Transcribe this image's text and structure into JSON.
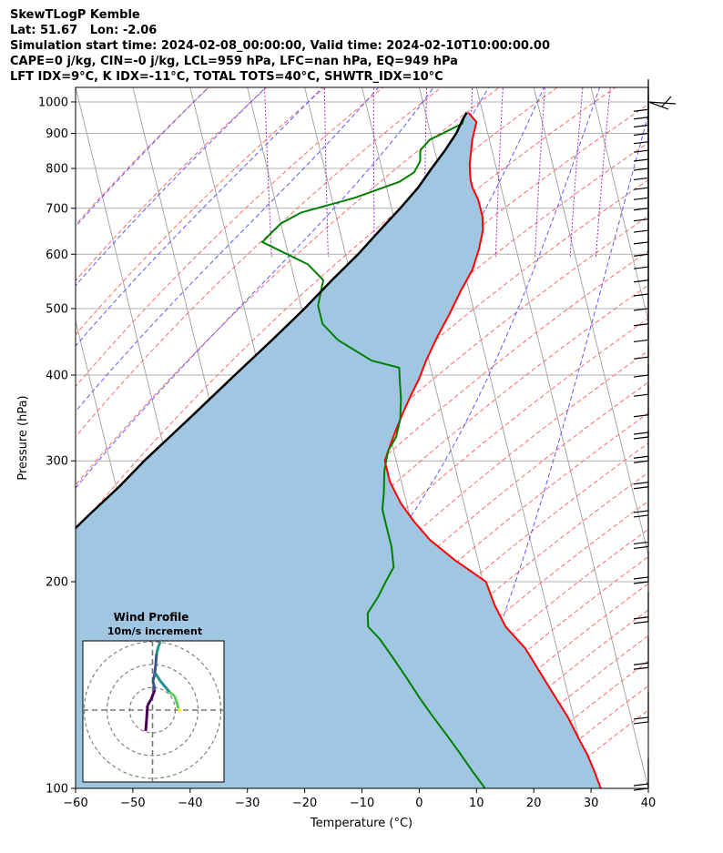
{
  "chart_data": {
    "type": "skew-t log-p",
    "title": {
      "line1": "SkewTLogP Kemble",
      "line2": "Lat: 51.67   Lon: -2.06",
      "line3": "Simulation start time: 2024-02-08_00:00:00, Valid time: 2024-02-10T10:00:00.00",
      "line4": "CAPE=0 j/kg, CIN=-0 j/kg, LCL=959 hPa, LFC=nan hPa, EQ=949 hPa",
      "line5": "LFT IDX=9°C, K IDX=-11°C, TOTAL TOTS=40°C, SHWTR_IDX=10°C"
    },
    "xlabel": "Temperature (°C)",
    "ylabel": "Pressure (hPa)",
    "xlim": [
      -60,
      40
    ],
    "ylim": [
      1050,
      100
    ],
    "y_scale": "log",
    "x_ticks": [
      "−60",
      "−50",
      "−40",
      "−30",
      "−20",
      "−10",
      "0",
      "10",
      "20",
      "30",
      "40"
    ],
    "y_ticks": [
      "100",
      "200",
      "300",
      "400",
      "500",
      "600",
      "700",
      "800",
      "900",
      "1000"
    ],
    "grid": true,
    "series": [
      {
        "color": "#ff0000",
        "points": [
          [
            7.5,
            965
          ],
          [
            8.5,
            935
          ],
          [
            7,
            880
          ],
          [
            5.5,
            810
          ],
          [
            5,
            770
          ],
          [
            5,
            750
          ],
          [
            5.5,
            720
          ],
          [
            5.5,
            680
          ],
          [
            5,
            650
          ],
          [
            3.5,
            610
          ],
          [
            1.5,
            570
          ],
          [
            -1.5,
            530
          ],
          [
            -4.5,
            490
          ],
          [
            -7.5,
            455
          ],
          [
            -10.5,
            420
          ],
          [
            -12.5,
            395
          ],
          [
            -14.5,
            375
          ],
          [
            -16.5,
            355
          ],
          [
            -18.5,
            335
          ],
          [
            -20.5,
            315
          ],
          [
            -22,
            300
          ],
          [
            -22,
            280
          ],
          [
            -21,
            260
          ],
          [
            -19.5,
            245
          ],
          [
            -17.5,
            230
          ],
          [
            -14,
            215
          ],
          [
            -9.5,
            200
          ],
          [
            -9,
            185
          ],
          [
            -8,
            172
          ],
          [
            -5.5,
            160
          ],
          [
            -4,
            148
          ],
          [
            -2.5,
            137
          ],
          [
            -1,
            127
          ],
          [
            0,
            118
          ],
          [
            0.8,
            112
          ],
          [
            1.3,
            106
          ],
          [
            1.7,
            100
          ]
        ]
      },
      {
        "color": "#008000",
        "points": [
          [
            6.5,
            950
          ],
          [
            6,
            930
          ],
          [
            -0.5,
            880
          ],
          [
            -2.5,
            850
          ],
          [
            -3,
            820
          ],
          [
            -4.5,
            790
          ],
          [
            -7.5,
            765
          ],
          [
            -16,
            725
          ],
          [
            -26,
            690
          ],
          [
            -30,
            665
          ],
          [
            -32,
            645
          ],
          [
            -34,
            625
          ],
          [
            -27,
            580
          ],
          [
            -25,
            550
          ],
          [
            -27,
            505
          ],
          [
            -27,
            475
          ],
          [
            -25,
            450
          ],
          [
            -20,
            420
          ],
          [
            -15.5,
            410
          ],
          [
            -16,
            390
          ],
          [
            -16.5,
            370
          ],
          [
            -17.5,
            345
          ],
          [
            -19,
            325
          ],
          [
            -21,
            310
          ],
          [
            -22.5,
            290
          ],
          [
            -23.5,
            270
          ],
          [
            -24.5,
            255
          ],
          [
            -24.5,
            240
          ],
          [
            -24.5,
            225
          ],
          [
            -25,
            210
          ],
          [
            -27,
            200
          ],
          [
            -29,
            190
          ],
          [
            -31.5,
            180
          ],
          [
            -32,
            172
          ],
          [
            -30.5,
            165
          ],
          [
            -29,
            155
          ],
          [
            -27.5,
            145
          ],
          [
            -26,
            135
          ],
          [
            -24.5,
            127
          ],
          [
            -23,
            120
          ],
          [
            -21.5,
            113
          ],
          [
            -20,
            106
          ],
          [
            -18.5,
            100
          ]
        ]
      },
      {
        "color": "#000000",
        "points": [
          [
            7.2,
            965
          ],
          [
            6.1,
            940
          ],
          [
            4.5,
            900
          ],
          [
            1.8,
            850
          ],
          [
            -1.3,
            800
          ],
          [
            -4.5,
            750
          ],
          [
            -8.5,
            700
          ],
          [
            -13,
            650
          ],
          [
            -17.8,
            600
          ],
          [
            -23.5,
            550
          ],
          [
            -29.5,
            500
          ],
          [
            -36.5,
            450
          ],
          [
            -44.5,
            400
          ],
          [
            -53.5,
            350
          ],
          [
            -57.5,
            330
          ],
          [
            -64,
            300
          ],
          [
            -69.5,
            275
          ],
          [
            -76,
            250
          ],
          [
            -83,
            225
          ],
          [
            -91,
            200
          ],
          [
            -96,
            187
          ],
          [
            -103,
            170
          ],
          [
            -112,
            150
          ],
          [
            -122,
            130
          ],
          [
            -133,
            113
          ],
          [
            -138,
            106
          ],
          [
            -143,
            100
          ]
        ]
      }
    ],
    "wind_barbs": {
      "pressures": [
        1000,
        975,
        950,
        925,
        900,
        875,
        850,
        825,
        800,
        775,
        750,
        725,
        700,
        675,
        650,
        625,
        600,
        575,
        550,
        525,
        500,
        475,
        450,
        425,
        400,
        375,
        350,
        325,
        300,
        275,
        250,
        225,
        200,
        175,
        150,
        125,
        100
      ]
    },
    "inset": {
      "title": "Wind Profile",
      "subtitle": "10m/s increment",
      "colormap": "viridis"
    }
  }
}
